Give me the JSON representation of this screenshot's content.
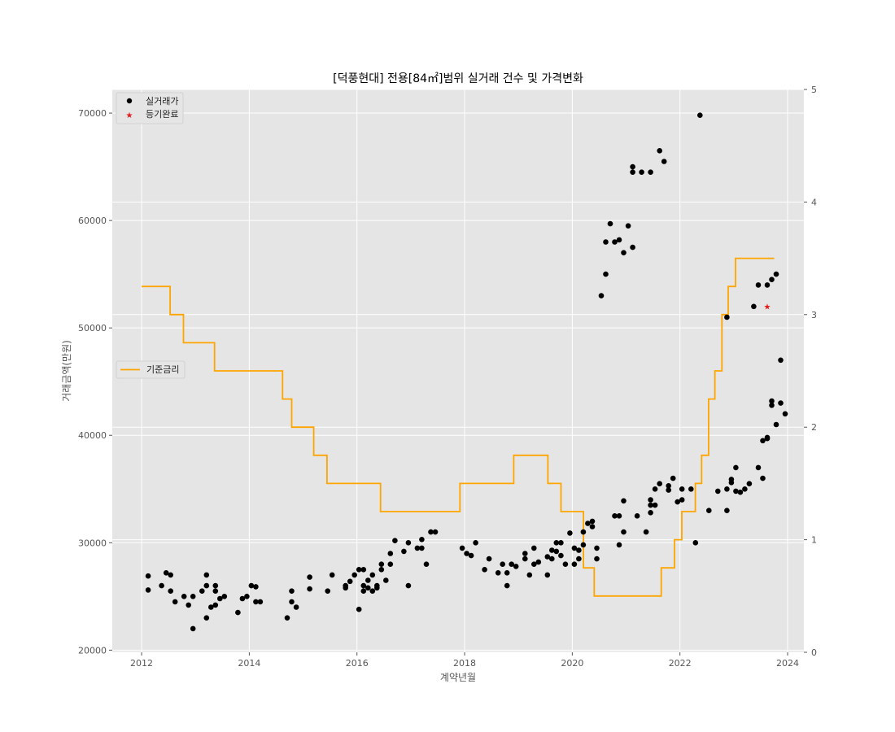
{
  "chart_data": {
    "type": "scatter",
    "title": "[덕풍현대] 전용[84㎡]범위 실거래 건수 및 가격변화",
    "xlabel": "계약년월",
    "ylabel": "거래금액(만원)",
    "xlim": [
      "2011-06-15",
      "2024-04-20"
    ],
    "ylim": [
      19800,
      72200
    ],
    "y2lim": [
      0,
      5
    ],
    "xticks": [
      "2012",
      "2014",
      "2016",
      "2018",
      "2020",
      "2022",
      "2024"
    ],
    "yticks": [
      20000,
      30000,
      40000,
      50000,
      60000,
      70000
    ],
    "y2ticks": [
      0,
      1,
      2,
      3,
      4,
      5
    ],
    "grid": true,
    "colors": {
      "plot_bg": "#e5e5e5",
      "grid": "#ffffff",
      "trade": "#000000",
      "registered": "#e41a1c",
      "rate": "#ffa500"
    },
    "legend_top": {
      "placement": "top-left",
      "entries": [
        {
          "label": "실거래가",
          "marker": "circle",
          "color": "#000000"
        },
        {
          "label": "등기완료",
          "marker": "star",
          "color": "#e41a1c"
        }
      ]
    },
    "legend_rate": {
      "placement": "center-left",
      "entries": [
        {
          "label": "기준금리",
          "marker": "line",
          "color": "#ffa500"
        }
      ]
    },
    "series": [
      {
        "name": "실거래가",
        "kind": "scatter",
        "axis": "left",
        "points": [
          [
            "2012-02",
            26900
          ],
          [
            "2012-02",
            25600
          ],
          [
            "2012-05",
            26000
          ],
          [
            "2012-06",
            27200
          ],
          [
            "2012-07",
            25500
          ],
          [
            "2012-07",
            27000
          ],
          [
            "2012-08",
            24500
          ],
          [
            "2012-10",
            25000
          ],
          [
            "2012-11",
            24200
          ],
          [
            "2012-12",
            25000
          ],
          [
            "2012-12",
            22000
          ],
          [
            "2013-02",
            25500
          ],
          [
            "2013-03",
            26000
          ],
          [
            "2013-03",
            27000
          ],
          [
            "2013-03",
            23000
          ],
          [
            "2013-04",
            24000
          ],
          [
            "2013-05",
            24200
          ],
          [
            "2013-05",
            25500
          ],
          [
            "2013-05",
            26000
          ],
          [
            "2013-06",
            24800
          ],
          [
            "2013-07",
            25000
          ],
          [
            "2013-10",
            23500
          ],
          [
            "2013-11",
            24800
          ],
          [
            "2013-12",
            25000
          ],
          [
            "2014-01",
            26000
          ],
          [
            "2014-02",
            24500
          ],
          [
            "2014-02",
            25900
          ],
          [
            "2014-03",
            24500
          ],
          [
            "2014-09",
            23000
          ],
          [
            "2014-10",
            24500
          ],
          [
            "2014-10",
            25500
          ],
          [
            "2014-11",
            24000
          ],
          [
            "2015-02",
            25700
          ],
          [
            "2015-02",
            26800
          ],
          [
            "2015-06",
            25500
          ],
          [
            "2015-07",
            27000
          ],
          [
            "2015-10",
            25800
          ],
          [
            "2015-10",
            26000
          ],
          [
            "2015-11",
            26400
          ],
          [
            "2015-12",
            27000
          ],
          [
            "2016-01",
            27500
          ],
          [
            "2016-01",
            23800
          ],
          [
            "2016-02",
            27500
          ],
          [
            "2016-02",
            26000
          ],
          [
            "2016-02",
            25500
          ],
          [
            "2016-03",
            25800
          ],
          [
            "2016-03",
            26500
          ],
          [
            "2016-04",
            25500
          ],
          [
            "2016-04",
            27000
          ],
          [
            "2016-05",
            26000
          ],
          [
            "2016-05",
            25800
          ],
          [
            "2016-06",
            28000
          ],
          [
            "2016-06",
            27500
          ],
          [
            "2016-07",
            26500
          ],
          [
            "2016-08",
            29000
          ],
          [
            "2016-08",
            28000
          ],
          [
            "2016-09",
            30200
          ],
          [
            "2016-11",
            29200
          ],
          [
            "2016-12",
            26000
          ],
          [
            "2016-12",
            30000
          ],
          [
            "2017-02",
            29500
          ],
          [
            "2017-03",
            30300
          ],
          [
            "2017-03",
            29500
          ],
          [
            "2017-04",
            28000
          ],
          [
            "2017-05",
            31000
          ],
          [
            "2017-06",
            31000
          ],
          [
            "2017-12",
            29500
          ],
          [
            "2018-01",
            29000
          ],
          [
            "2018-02",
            28800
          ],
          [
            "2018-03",
            30000
          ],
          [
            "2018-05",
            27500
          ],
          [
            "2018-06",
            28500
          ],
          [
            "2018-08",
            27200
          ],
          [
            "2018-09",
            28000
          ],
          [
            "2018-10",
            26000
          ],
          [
            "2018-10",
            27200
          ],
          [
            "2018-11",
            28000
          ],
          [
            "2018-12",
            27800
          ],
          [
            "2019-02",
            28500
          ],
          [
            "2019-02",
            29000
          ],
          [
            "2019-03",
            27000
          ],
          [
            "2019-04",
            28000
          ],
          [
            "2019-04",
            29500
          ],
          [
            "2019-05",
            28200
          ],
          [
            "2019-07",
            27000
          ],
          [
            "2019-07",
            28700
          ],
          [
            "2019-08",
            29300
          ],
          [
            "2019-08",
            28500
          ],
          [
            "2019-09",
            30000
          ],
          [
            "2019-09",
            29200
          ],
          [
            "2019-10",
            28800
          ],
          [
            "2019-10",
            30000
          ],
          [
            "2019-11",
            28000
          ],
          [
            "2019-12",
            30900
          ],
          [
            "2020-01",
            29500
          ],
          [
            "2020-01",
            28000
          ],
          [
            "2020-02",
            28500
          ],
          [
            "2020-02",
            29300
          ],
          [
            "2020-03",
            31000
          ],
          [
            "2020-03",
            29800
          ],
          [
            "2020-04",
            31800
          ],
          [
            "2020-05",
            31500
          ],
          [
            "2020-05",
            32000
          ],
          [
            "2020-06",
            29500
          ],
          [
            "2020-06",
            28500
          ],
          [
            "2020-10",
            32500
          ],
          [
            "2020-11",
            32500
          ],
          [
            "2020-11",
            29800
          ],
          [
            "2020-12",
            31000
          ],
          [
            "2020-12",
            33900
          ],
          [
            "2021-03",
            32500
          ],
          [
            "2021-05",
            31000
          ],
          [
            "2021-06",
            33500
          ],
          [
            "2021-06",
            34000
          ],
          [
            "2021-06",
            32800
          ],
          [
            "2021-07",
            33500
          ],
          [
            "2021-07",
            35000
          ],
          [
            "2021-08",
            35500
          ],
          [
            "2021-10",
            34900
          ],
          [
            "2021-10",
            35300
          ],
          [
            "2021-11",
            36000
          ],
          [
            "2021-12",
            33800
          ],
          [
            "2022-01",
            35000
          ],
          [
            "2022-01",
            34000
          ],
          [
            "2022-03",
            35000
          ],
          [
            "2022-04",
            30000
          ],
          [
            "2022-07",
            33000
          ],
          [
            "2022-09",
            34800
          ],
          [
            "2022-11",
            35000
          ],
          [
            "2022-11",
            33000
          ],
          [
            "2022-12",
            35900
          ],
          [
            "2022-12",
            35600
          ],
          [
            "2023-01",
            34800
          ],
          [
            "2023-01",
            37000
          ],
          [
            "2023-02",
            34700
          ],
          [
            "2023-03",
            35000
          ],
          [
            "2023-04",
            35500
          ],
          [
            "2023-06",
            37000
          ],
          [
            "2023-07",
            36000
          ],
          [
            "2023-07",
            39500
          ],
          [
            "2023-08",
            39800
          ],
          [
            "2023-08",
            39700
          ],
          [
            "2023-09",
            42800
          ],
          [
            "2023-09",
            43200
          ],
          [
            "2023-10",
            41000
          ],
          [
            "2023-11",
            43000
          ],
          [
            "2023-11",
            47000
          ],
          [
            "2023-12",
            42000
          ]
        ]
      },
      {
        "name": "실거래가",
        "kind": "scatter",
        "axis": "left",
        "points": [
          [
            "2020-07",
            53000
          ],
          [
            "2020-08",
            55000
          ],
          [
            "2020-08",
            58000
          ],
          [
            "2020-09",
            59700
          ],
          [
            "2020-10",
            58000
          ],
          [
            "2020-11",
            58200
          ],
          [
            "2020-12",
            57000
          ],
          [
            "2021-01",
            59500
          ],
          [
            "2021-02",
            57500
          ],
          [
            "2021-02",
            64500
          ],
          [
            "2021-02",
            65000
          ],
          [
            "2021-04",
            64500
          ],
          [
            "2021-06",
            64500
          ],
          [
            "2021-08",
            66500
          ],
          [
            "2021-09",
            65500
          ],
          [
            "2022-05",
            69800
          ],
          [
            "2022-11",
            51000
          ],
          [
            "2023-05",
            52000
          ],
          [
            "2023-06",
            54000
          ],
          [
            "2023-08",
            54000
          ],
          [
            "2023-09",
            54500
          ],
          [
            "2023-10",
            55000
          ]
        ]
      },
      {
        "name": "등기완료",
        "kind": "scatter",
        "axis": "left",
        "points": [
          [
            "2023-08",
            52000
          ]
        ]
      },
      {
        "name": "기준금리",
        "kind": "step",
        "axis": "right",
        "points": [
          [
            "2012-01-01",
            3.25
          ],
          [
            "2012-07-12",
            3.0
          ],
          [
            "2012-10-11",
            2.75
          ],
          [
            "2013-05-09",
            2.5
          ],
          [
            "2014-08-14",
            2.25
          ],
          [
            "2014-10-15",
            2.0
          ],
          [
            "2015-03-12",
            1.75
          ],
          [
            "2015-06-11",
            1.5
          ],
          [
            "2016-06-09",
            1.25
          ],
          [
            "2017-11-30",
            1.5
          ],
          [
            "2018-11-30",
            1.75
          ],
          [
            "2019-07-18",
            1.5
          ],
          [
            "2019-10-16",
            1.25
          ],
          [
            "2020-03-16",
            0.75
          ],
          [
            "2020-05-28",
            0.5
          ],
          [
            "2021-08-26",
            0.75
          ],
          [
            "2021-11-25",
            1.0
          ],
          [
            "2022-01-14",
            1.25
          ],
          [
            "2022-04-14",
            1.5
          ],
          [
            "2022-05-26",
            1.75
          ],
          [
            "2022-07-13",
            2.25
          ],
          [
            "2022-08-25",
            2.5
          ],
          [
            "2022-10-12",
            3.0
          ],
          [
            "2022-11-24",
            3.25
          ],
          [
            "2023-01-13",
            3.5
          ],
          [
            "2023-10-01",
            3.5
          ]
        ]
      }
    ]
  }
}
